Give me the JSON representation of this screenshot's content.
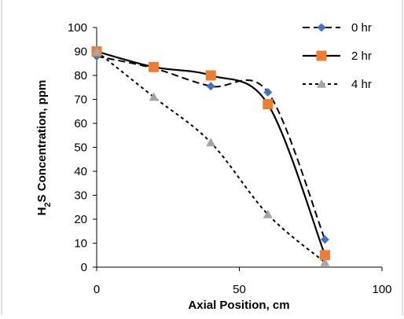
{
  "chart_data": {
    "type": "line",
    "title": "",
    "xlabel": "Axial Position, cm",
    "ylabel_parts": {
      "a": "H",
      "sub": "2",
      "b": "S Concentration, ppm"
    },
    "xlim": [
      0,
      100
    ],
    "ylim": [
      0,
      100
    ],
    "x_ticks": [
      "0",
      "50",
      "100"
    ],
    "y_ticks": [
      "0",
      "10",
      "20",
      "30",
      "40",
      "50",
      "60",
      "70",
      "80",
      "90",
      "100"
    ],
    "grid": false,
    "legend_position": "top-right",
    "series": [
      {
        "name": "0 hr",
        "x": [
          0,
          20,
          40,
          60,
          80
        ],
        "y": [
          88,
          83,
          75.5,
          73,
          11.5
        ],
        "color": "#4472C4",
        "marker": "diamond",
        "line": "dashed"
      },
      {
        "name": "2 hr",
        "x": [
          0,
          20,
          40,
          60,
          80
        ],
        "y": [
          90,
          83.5,
          80,
          68,
          5
        ],
        "color": "#ED7D31",
        "marker": "square",
        "line": "solid"
      },
      {
        "name": "4 hr",
        "x": [
          0,
          20,
          40,
          60,
          80
        ],
        "y": [
          90,
          71,
          52,
          22,
          2
        ],
        "color": "#A5A5A5",
        "marker": "triangle",
        "line": "dotted"
      }
    ]
  }
}
